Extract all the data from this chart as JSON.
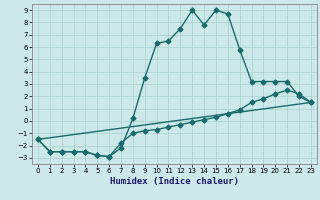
{
  "xlabel": "Humidex (Indice chaleur)",
  "bg_color": "#cce8e8",
  "grid_color": "#aacfcf",
  "line_color": "#1a6b6b",
  "xlim": [
    -0.5,
    23.5
  ],
  "ylim": [
    -3.5,
    9.5
  ],
  "xticks": [
    0,
    1,
    2,
    3,
    4,
    5,
    6,
    7,
    8,
    9,
    10,
    11,
    12,
    13,
    14,
    15,
    16,
    17,
    18,
    19,
    20,
    21,
    22,
    23
  ],
  "yticks": [
    -3,
    -2,
    -1,
    0,
    1,
    2,
    3,
    4,
    5,
    6,
    7,
    8,
    9
  ],
  "series1_x": [
    0,
    1,
    2,
    3,
    4,
    5,
    6,
    7,
    8,
    9,
    10,
    11,
    12,
    13,
    14,
    15,
    16,
    17,
    18,
    19,
    20,
    21,
    22,
    23
  ],
  "series1_y": [
    -1.5,
    -2.5,
    -2.5,
    -2.5,
    -2.5,
    -2.8,
    -2.9,
    -2.2,
    0.2,
    3.5,
    6.3,
    6.5,
    7.5,
    9.0,
    7.8,
    9.0,
    8.7,
    5.8,
    3.2,
    3.2,
    3.2,
    3.2,
    2.0,
    1.5
  ],
  "series2_x": [
    0,
    1,
    2,
    3,
    4,
    5,
    6,
    7,
    8,
    9,
    10,
    11,
    12,
    13,
    14,
    15,
    16,
    17,
    18,
    19,
    20,
    21,
    22,
    23
  ],
  "series2_y": [
    -1.5,
    -2.5,
    -2.5,
    -2.5,
    -2.5,
    -2.8,
    -2.9,
    -1.8,
    -1.0,
    -0.8,
    -0.7,
    -0.5,
    -0.3,
    -0.1,
    0.1,
    0.3,
    0.6,
    0.9,
    1.5,
    1.8,
    2.2,
    2.5,
    2.2,
    1.5
  ],
  "series3_x": [
    0,
    23
  ],
  "series3_y": [
    -1.5,
    1.5
  ],
  "marker": "D",
  "markersize": 2.5,
  "linewidth": 1.0
}
